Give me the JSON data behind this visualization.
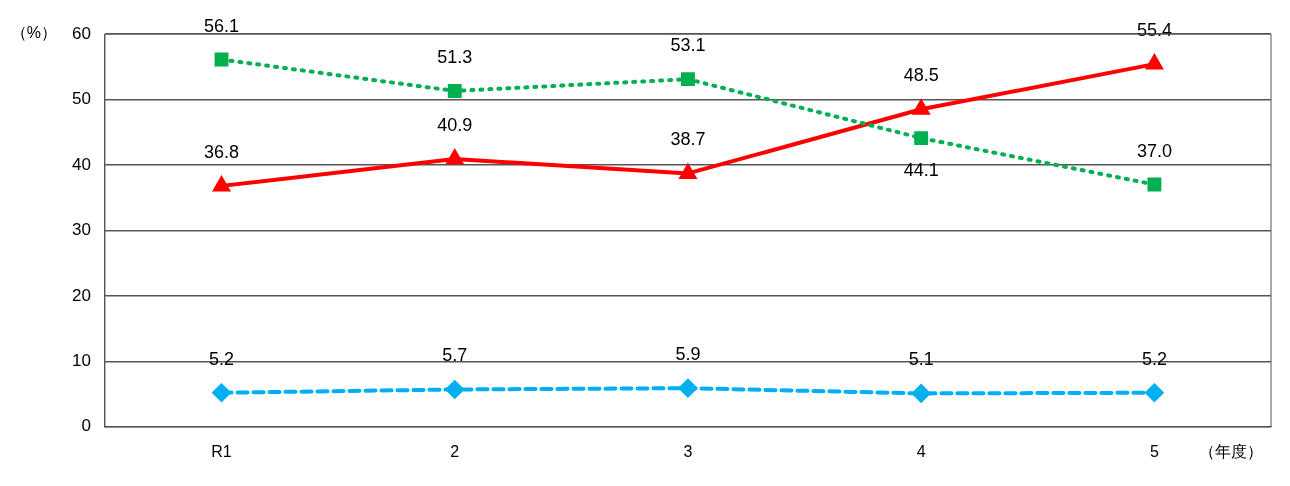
{
  "chart_data": {
    "type": "line",
    "ylabel": "（%）",
    "xlabel": "（年度）",
    "categories": [
      "R1",
      "2",
      "3",
      "4",
      "5"
    ],
    "ylim": [
      0,
      60
    ],
    "yticks": [
      0,
      10,
      20,
      30,
      40,
      50,
      60
    ],
    "grid": "y",
    "series": [
      {
        "color": "#00b050",
        "marker": "square",
        "line_style": "dotted",
        "values": [
          56.1,
          51.3,
          53.1,
          44.1,
          37.0
        ],
        "value_labels": [
          "56.1",
          "51.3",
          "53.1",
          "44.1",
          "37.0"
        ]
      },
      {
        "color": "#ff0000",
        "marker": "triangle",
        "line_style": "solid",
        "values": [
          36.8,
          40.9,
          38.7,
          48.5,
          55.4
        ],
        "value_labels": [
          "36.8",
          "40.9",
          "38.7",
          "48.5",
          "55.4"
        ]
      },
      {
        "color": "#00b0f0",
        "marker": "diamond",
        "line_style": "dashed",
        "values": [
          5.2,
          5.7,
          5.9,
          5.1,
          5.2
        ],
        "value_labels": [
          "5.2",
          "5.7",
          "5.9",
          "5.1",
          "5.2"
        ]
      }
    ]
  }
}
